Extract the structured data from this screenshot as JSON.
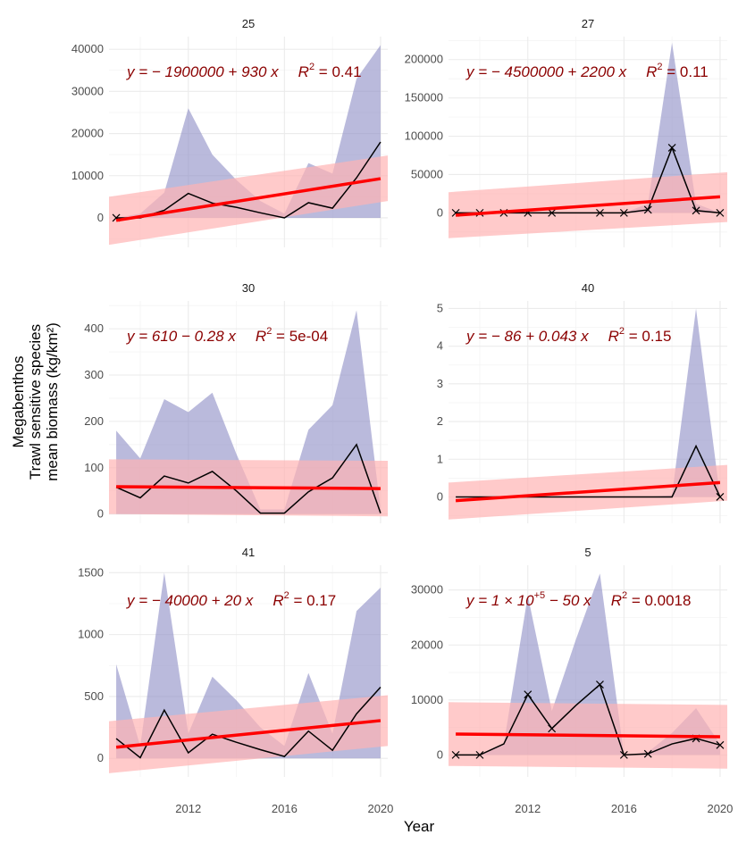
{
  "chart_data": {
    "type": "line",
    "facet_layout": "3 rows x 2 columns",
    "xlabel": "Year",
    "ylabel": [
      "Megabenthos",
      "Trawl sensitive species",
      "mean biomass (kg/km²)"
    ],
    "x_ticks": [
      2012,
      2016,
      2020
    ],
    "xlim": [
      2008.7,
      2020.3
    ],
    "colors": {
      "line": "#000000",
      "ribbon": "#8c8cc4",
      "fit": "#ff0000",
      "fit_ci": "#ffb3b3",
      "equation": "#8b0000",
      "grid": "#ebebeb"
    },
    "panels": [
      {
        "title": "25",
        "eq": {
          "a": "y = − 1900000 + 930 x",
          "b": "R",
          "sup": "2",
          "c": " = 0.41"
        },
        "ylim": [
          -7000,
          43000
        ],
        "y_ticks": [
          0,
          10000,
          20000,
          30000,
          40000
        ],
        "y_tick_labels": [
          "0",
          "10000",
          "20000",
          "30000",
          "40000"
        ],
        "x": [
          2009,
          2010,
          2011,
          2012,
          2013,
          2014,
          2015,
          2016,
          2017,
          2018,
          2019,
          2020
        ],
        "mean": [
          0,
          0,
          1800,
          5800,
          3500,
          2500,
          1200,
          0,
          3600,
          2300,
          9500,
          18000
        ],
        "upper": [
          0,
          1000,
          6000,
          26000,
          15000,
          9000,
          4000,
          1000,
          13000,
          10500,
          33000,
          41000
        ],
        "lower": [
          0,
          0,
          0,
          0,
          0,
          0,
          0,
          0,
          0,
          0,
          0,
          0
        ],
        "markers": [
          2009
        ],
        "fit": {
          "y0": -600,
          "y1": 9300,
          "ci_lo0": -6400,
          "ci_hi0": 5000,
          "ci_lo1": 4000,
          "ci_hi1": 14800
        }
      },
      {
        "title": "27",
        "eq": {
          "a": "y = − 4500000 + 2200 x",
          "b": "R",
          "sup": "2",
          "c": " = 0.11"
        },
        "ylim": [
          -45000,
          230000
        ],
        "y_ticks": [
          0,
          50000,
          100000,
          150000,
          200000
        ],
        "y_tick_labels": [
          "0",
          "50000",
          "100000",
          "150000",
          "200000"
        ],
        "x": [
          2009,
          2010,
          2011,
          2012,
          2013,
          2014,
          2015,
          2016,
          2017,
          2018,
          2019,
          2020
        ],
        "mean": [
          0,
          0,
          0,
          0,
          0,
          0,
          0,
          0,
          4000,
          85000,
          3000,
          0
        ],
        "upper": [
          0,
          0,
          0,
          0,
          0,
          0,
          0,
          0,
          12000,
          222000,
          12000,
          0
        ],
        "lower": [
          0,
          0,
          0,
          0,
          0,
          0,
          0,
          0,
          0,
          0,
          0,
          0
        ],
        "markers": [
          2009,
          2010,
          2011,
          2012,
          2013,
          2015,
          2016,
          2017,
          2018,
          2019,
          2020
        ],
        "fit": {
          "y0": -3000,
          "y1": 21000,
          "ci_lo0": -33000,
          "ci_hi0": 27000,
          "ci_lo1": -12000,
          "ci_hi1": 53000
        }
      },
      {
        "title": "30",
        "eq": {
          "a": "y = 610 − 0.28 x",
          "b": "R",
          "sup": "2",
          "c": " = 5e-04"
        },
        "ylim": [
          -20,
          460
        ],
        "y_ticks": [
          0,
          100,
          200,
          300,
          400
        ],
        "y_tick_labels": [
          "0",
          "100",
          "200",
          "300",
          "400"
        ],
        "x": [
          2009,
          2010,
          2011,
          2012,
          2013,
          2014,
          2015,
          2016,
          2017,
          2018,
          2019,
          2020
        ],
        "mean": [
          58,
          35,
          82,
          67,
          92,
          50,
          2,
          2,
          48,
          78,
          150,
          2
        ],
        "upper": [
          180,
          120,
          248,
          220,
          262,
          130,
          10,
          10,
          182,
          235,
          440,
          10
        ],
        "lower": [
          0,
          0,
          0,
          0,
          0,
          0,
          0,
          0,
          0,
          0,
          0,
          0
        ],
        "markers": [],
        "fit": {
          "y0": 59,
          "y1": 55,
          "ci_lo0": 0,
          "ci_hi0": 118,
          "ci_lo1": -5,
          "ci_hi1": 115
        }
      },
      {
        "title": "40",
        "eq": {
          "a": "y = − 86 + 0.043 x",
          "b": "R",
          "sup": "2",
          "c": " = 0.15"
        },
        "ylim": [
          -0.7,
          5.2
        ],
        "y_ticks": [
          0,
          1,
          2,
          3,
          4,
          5
        ],
        "y_tick_labels": [
          "0",
          "1",
          "2",
          "3",
          "4",
          "5"
        ],
        "x": [
          2009,
          2010,
          2011,
          2012,
          2013,
          2014,
          2015,
          2016,
          2017,
          2018,
          2019,
          2020
        ],
        "mean": [
          0,
          0,
          0,
          0,
          0,
          0,
          0,
          0,
          0,
          0,
          1.35,
          0
        ],
        "upper": [
          0,
          0,
          0,
          0,
          0,
          0,
          0,
          0,
          0,
          0.05,
          5.0,
          0
        ],
        "lower": [
          0,
          0,
          0,
          0,
          0,
          0,
          0,
          0,
          0,
          0,
          0,
          0
        ],
        "markers": [
          2020
        ],
        "fit": {
          "y0": -0.1,
          "y1": 0.38,
          "ci_lo0": -0.6,
          "ci_hi0": 0.38,
          "ci_lo1": -0.1,
          "ci_hi1": 0.85
        }
      },
      {
        "title": "41",
        "eq": {
          "a": "y = − 40000 + 20 x",
          "b": "R",
          "sup": "2",
          "c": " = 0.17"
        },
        "ylim": [
          -150,
          1560
        ],
        "y_ticks": [
          0,
          500,
          1000,
          1500
        ],
        "y_tick_labels": [
          "0",
          "500",
          "1000",
          "1500"
        ],
        "x": [
          2009,
          2010,
          2011,
          2012,
          2013,
          2014,
          2015,
          2016,
          2017,
          2018,
          2019,
          2020
        ],
        "mean": [
          160,
          5,
          390,
          45,
          195,
          130,
          70,
          15,
          220,
          65,
          360,
          575
        ],
        "upper": [
          760,
          100,
          1500,
          200,
          660,
          470,
          250,
          100,
          690,
          200,
          1190,
          1380
        ],
        "lower": [
          0,
          0,
          0,
          0,
          0,
          0,
          0,
          0,
          0,
          0,
          0,
          0
        ],
        "markers": [],
        "fit": {
          "y0": 90,
          "y1": 305,
          "ci_lo0": -120,
          "ci_hi0": 300,
          "ci_lo1": 100,
          "ci_hi1": 510
        }
      },
      {
        "title": "5",
        "eq": {
          "a": "y = 1 × 10",
          "sup1": "+5",
          "a2": " − 50 x",
          "b": "R",
          "sup": "2",
          "c": " = 0.0018"
        },
        "ylim": [
          -4000,
          34500
        ],
        "y_ticks": [
          0,
          10000,
          20000,
          30000
        ],
        "y_tick_labels": [
          "0",
          "10000",
          "20000",
          "30000"
        ],
        "x": [
          2009,
          2010,
          2011,
          2012,
          2013,
          2014,
          2015,
          2016,
          2017,
          2018,
          2019,
          2020
        ],
        "mean": [
          0,
          0,
          2000,
          11000,
          4800,
          9000,
          12800,
          0,
          200,
          2000,
          3000,
          1800
        ],
        "upper": [
          0,
          0,
          2000,
          29000,
          8000,
          21000,
          33000,
          0,
          500,
          4000,
          8500,
          2000
        ],
        "lower": [
          0,
          0,
          0,
          0,
          0,
          0,
          0,
          0,
          0,
          0,
          0,
          0
        ],
        "markers": [
          2009,
          2010,
          2012,
          2013,
          2015,
          2016,
          2017,
          2019,
          2020
        ],
        "fit": {
          "y0": 3800,
          "y1": 3300,
          "ci_lo0": -2000,
          "ci_hi0": 9600,
          "ci_lo1": -2500,
          "ci_hi1": 9100
        }
      }
    ]
  }
}
